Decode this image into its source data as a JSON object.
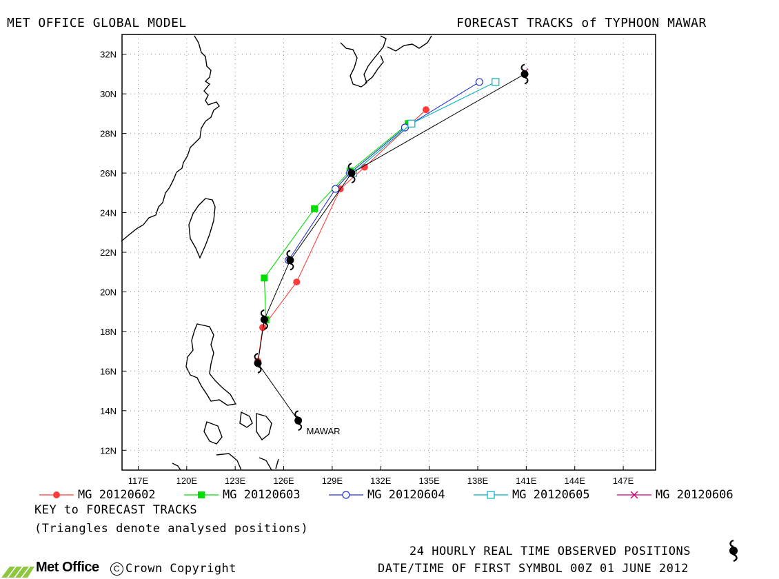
{
  "header": {
    "left": "MET OFFICE GLOBAL MODEL",
    "right": "FORECAST TRACKS of TYPHOON MAWAR"
  },
  "map": {
    "lon_range": [
      116,
      149
    ],
    "lat_range": [
      11,
      33
    ],
    "lon_ticks": [
      "117E",
      "120E",
      "123E",
      "126E",
      "129E",
      "132E",
      "135E",
      "138E",
      "141E",
      "144E",
      "147E"
    ],
    "lat_ticks": [
      "12N",
      "14N",
      "16N",
      "18N",
      "20N",
      "22N",
      "24N",
      "26N",
      "28N",
      "30N",
      "32N"
    ],
    "storm_label": "MAWAR"
  },
  "chart_data": {
    "type": "scatter",
    "x_axis": "longitude",
    "y_axis": "latitude",
    "observed_track": {
      "points": [
        [
          126.9,
          13.5
        ],
        [
          124.4,
          16.4
        ],
        [
          124.8,
          18.6
        ],
        [
          126.4,
          21.6
        ],
        [
          130.2,
          26.0
        ],
        [
          140.9,
          31.0
        ]
      ]
    },
    "series": [
      {
        "name": "MG 20120602",
        "color": "#ff3b3b",
        "marker": "filled-circle",
        "points": [
          [
            124.4,
            16.5
          ],
          [
            124.7,
            18.2
          ],
          [
            126.8,
            20.5
          ],
          [
            129.5,
            25.2
          ],
          [
            131.0,
            26.3
          ],
          [
            134.8,
            29.2
          ]
        ]
      },
      {
        "name": "MG 20120603",
        "color": "#00dd00",
        "marker": "filled-square",
        "points": [
          [
            124.9,
            18.6
          ],
          [
            124.8,
            20.7
          ],
          [
            127.9,
            24.2
          ],
          [
            130.1,
            26.1
          ],
          [
            133.7,
            28.5
          ]
        ]
      },
      {
        "name": "MG 20120604",
        "color": "#2233cc",
        "marker": "open-circle",
        "points": [
          [
            126.3,
            21.6
          ],
          [
            129.2,
            25.2
          ],
          [
            130.1,
            26.0
          ],
          [
            133.5,
            28.3
          ],
          [
            138.1,
            30.6
          ]
        ]
      },
      {
        "name": "MG 20120605",
        "color": "#00b0c0",
        "marker": "open-square",
        "points": [
          [
            130.3,
            26.0
          ],
          [
            133.9,
            28.5
          ],
          [
            139.1,
            30.6
          ]
        ]
      },
      {
        "name": "MG 20120606",
        "color": "#cc0077",
        "marker": "cross",
        "points": [
          [
            140.9,
            31.1
          ]
        ]
      }
    ]
  },
  "legend": [
    {
      "label": "MG 20120602",
      "color": "#ff3b3b",
      "marker": "filled-circle"
    },
    {
      "label": "MG 20120603",
      "color": "#00dd00",
      "marker": "filled-square"
    },
    {
      "label": "MG 20120604",
      "color": "#2233cc",
      "marker": "open-circle"
    },
    {
      "label": "MG 20120605",
      "color": "#00b0c0",
      "marker": "open-square"
    },
    {
      "label": "MG 20120606",
      "color": "#cc0077",
      "marker": "cross"
    }
  ],
  "footer": {
    "key_title": "KEY to FORECAST TRACKS",
    "key_note": "(Triangles denote analysed positions)",
    "observed": "24 HOURLY REAL TIME OBSERVED POSITIONS",
    "date": "DATE/TIME OF FIRST SYMBOL 00Z 01 JUNE 2012",
    "logo": "Met Office",
    "copyright_symbol": "C",
    "copyright": "Crown Copyright"
  }
}
